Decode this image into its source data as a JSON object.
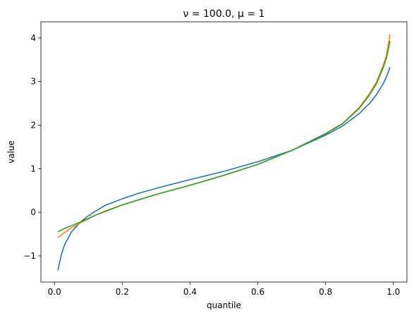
{
  "chart_data": {
    "type": "line",
    "title": "ν = 100.0, μ = 1",
    "xlabel": "quantile",
    "ylabel": "value",
    "xlim": [
      -0.04,
      1.04
    ],
    "ylim": [
      -1.6,
      4.37
    ],
    "xticks": [
      0.0,
      0.2,
      0.4,
      0.6,
      0.8,
      1.0
    ],
    "xtick_labels": [
      "0.0",
      "0.2",
      "0.4",
      "0.6",
      "0.8",
      "1.0"
    ],
    "yticks": [
      -1,
      0,
      1,
      2,
      3,
      4
    ],
    "ytick_labels": [
      "−1",
      "0",
      "1",
      "2",
      "3",
      "4"
    ],
    "grid": false,
    "legend": "none",
    "series": [
      {
        "color": "#1f77b4",
        "x": [
          0.01,
          0.02,
          0.03,
          0.05,
          0.08,
          0.1,
          0.12,
          0.15,
          0.2,
          0.25,
          0.3,
          0.4,
          0.5,
          0.6,
          0.7,
          0.8,
          0.85,
          0.9,
          0.93,
          0.95,
          0.97,
          0.98,
          0.99
        ],
        "y": [
          -1.33,
          -0.98,
          -0.74,
          -0.45,
          -0.2,
          -0.08,
          0.02,
          0.16,
          0.31,
          0.44,
          0.55,
          0.75,
          0.94,
          1.16,
          1.42,
          1.77,
          1.98,
          2.27,
          2.5,
          2.7,
          2.95,
          3.12,
          3.33
        ]
      },
      {
        "color": "#ff7f0e",
        "x": [
          0.01,
          0.02,
          0.03,
          0.05,
          0.08,
          0.1,
          0.12,
          0.15,
          0.2,
          0.25,
          0.3,
          0.4,
          0.5,
          0.6,
          0.7,
          0.8,
          0.85,
          0.9,
          0.93,
          0.95,
          0.97,
          0.98,
          0.99
        ],
        "y": [
          -0.58,
          -0.52,
          -0.46,
          -0.36,
          -0.23,
          -0.15,
          -0.07,
          0.03,
          0.17,
          0.29,
          0.41,
          0.62,
          0.85,
          1.1,
          1.42,
          1.81,
          2.04,
          2.41,
          2.73,
          2.99,
          3.37,
          3.62,
          4.08
        ]
      },
      {
        "color": "#2ca02c",
        "x": [
          0.01,
          0.02,
          0.03,
          0.05,
          0.08,
          0.1,
          0.12,
          0.15,
          0.2,
          0.25,
          0.3,
          0.4,
          0.5,
          0.6,
          0.7,
          0.8,
          0.85,
          0.9,
          0.93,
          0.95,
          0.97,
          0.98,
          0.99
        ],
        "y": [
          -0.45,
          -0.41,
          -0.37,
          -0.31,
          -0.21,
          -0.14,
          -0.07,
          0.02,
          0.17,
          0.29,
          0.41,
          0.62,
          0.85,
          1.1,
          1.42,
          1.8,
          2.03,
          2.39,
          2.7,
          2.95,
          3.32,
          3.55,
          3.93
        ]
      }
    ]
  }
}
